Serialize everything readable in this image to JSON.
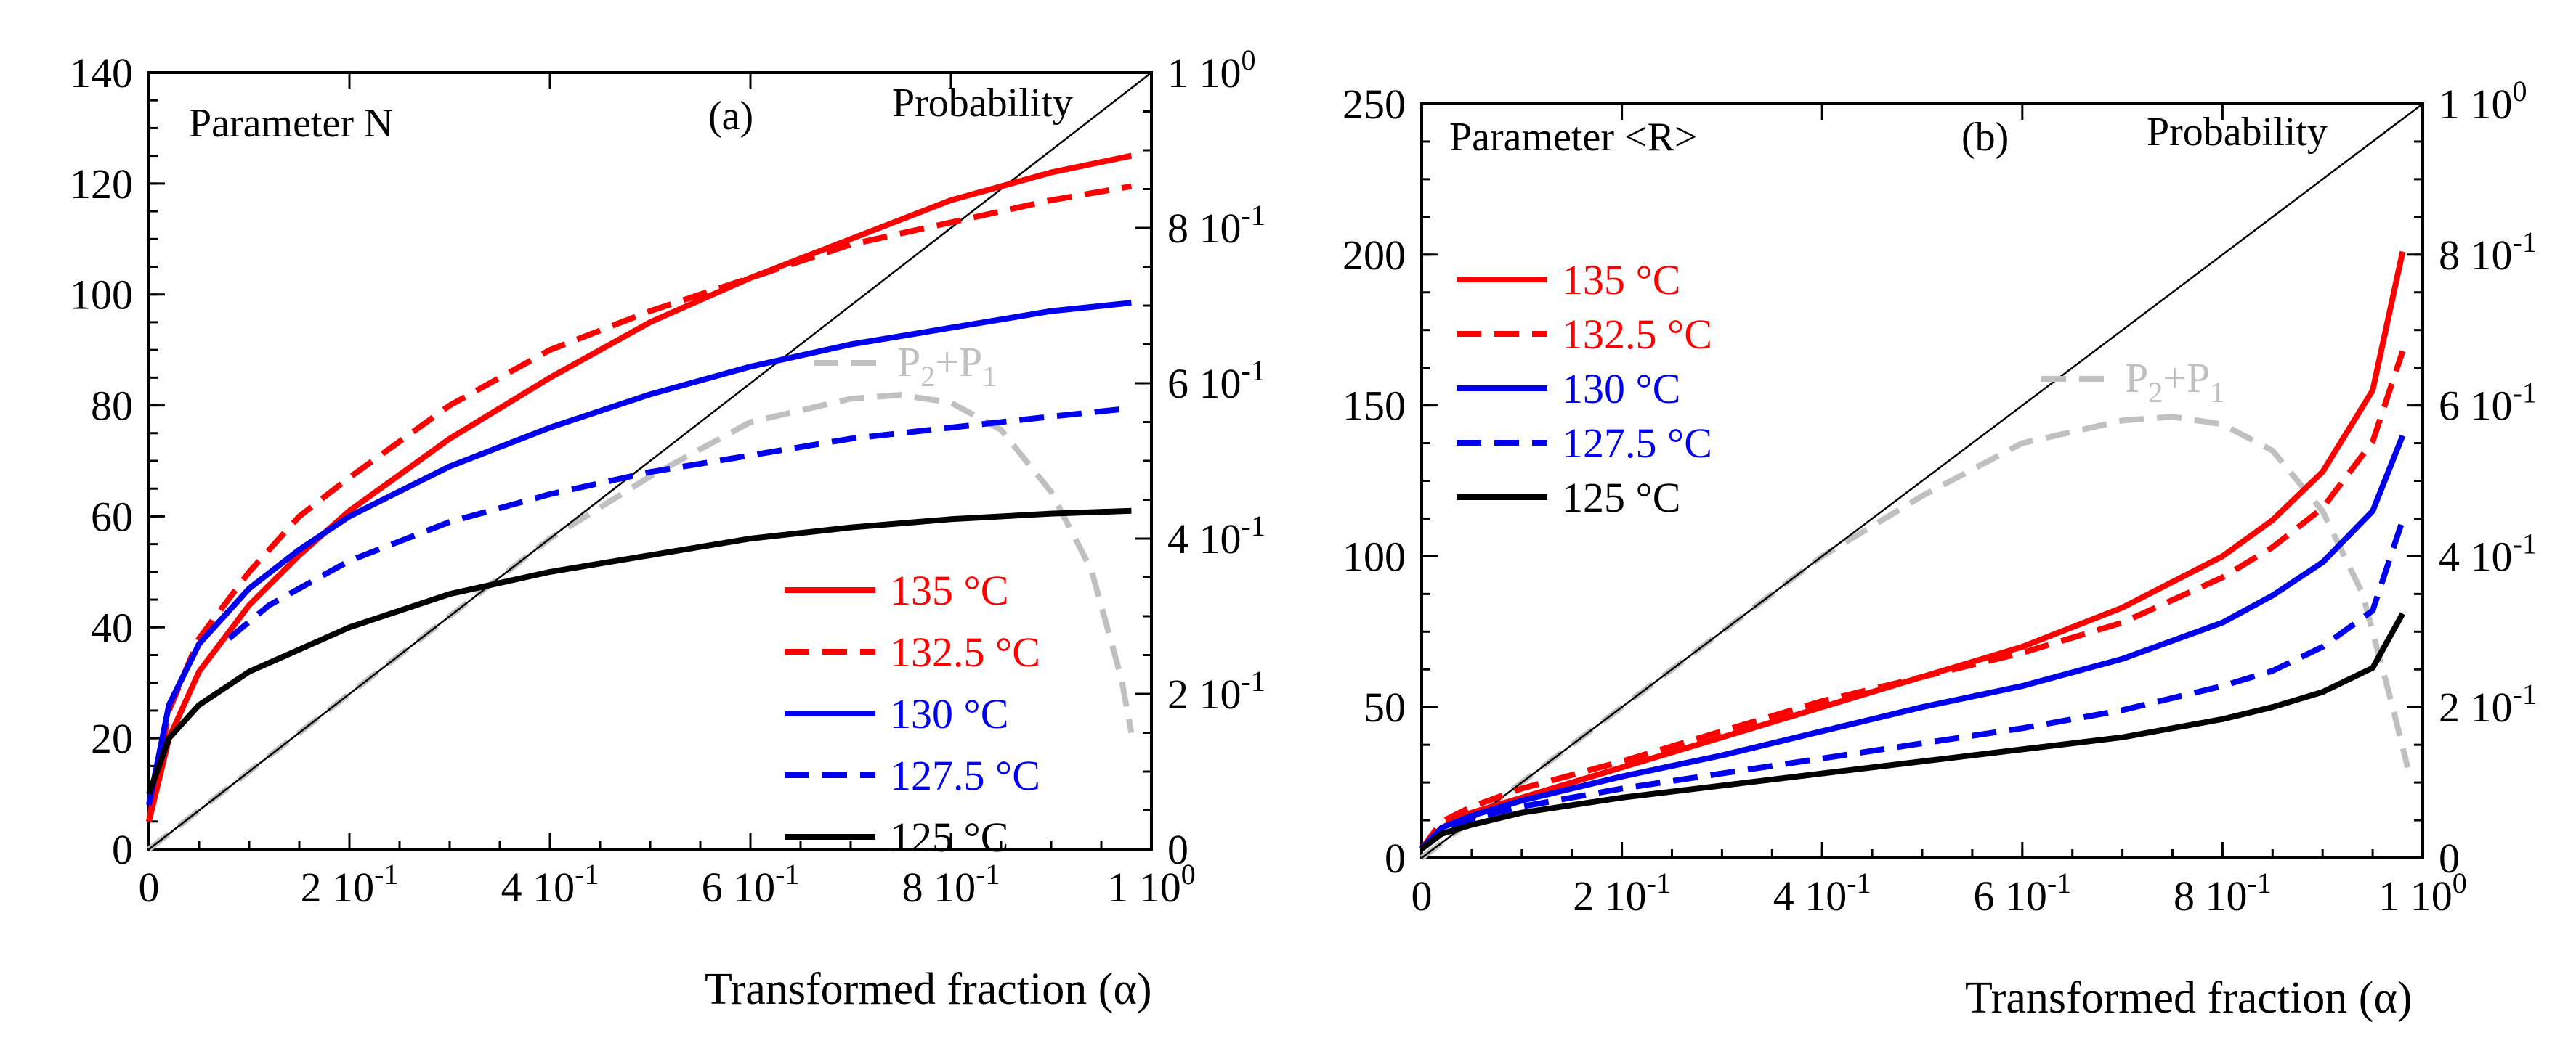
{
  "chart_data": [
    {
      "id": "a",
      "type": "line",
      "panel_label": "(a)",
      "title": "Parameter N",
      "right_title": "Probability",
      "xlabel": "Transformed fraction (α)",
      "xlim": [
        0,
        1
      ],
      "ylim": [
        0,
        140
      ],
      "y2lim": [
        0,
        1
      ],
      "xticks": [
        {
          "v": 0,
          "label": "0"
        },
        {
          "v": 0.2,
          "label": "2 10",
          "exp": "-1"
        },
        {
          "v": 0.4,
          "label": "4 10",
          "exp": "-1"
        },
        {
          "v": 0.6,
          "label": "6 10",
          "exp": "-1"
        },
        {
          "v": 0.8,
          "label": "8 10",
          "exp": "-1"
        },
        {
          "v": 1.0,
          "label": "1 10",
          "exp": "0"
        }
      ],
      "yticks": [
        {
          "v": 0,
          "label": "0"
        },
        {
          "v": 20,
          "label": "20"
        },
        {
          "v": 40,
          "label": "40"
        },
        {
          "v": 60,
          "label": "60"
        },
        {
          "v": 80,
          "label": "80"
        },
        {
          "v": 100,
          "label": "100"
        },
        {
          "v": 120,
          "label": "120"
        },
        {
          "v": 140,
          "label": "140"
        }
      ],
      "y2ticks": [
        {
          "v": 0,
          "label": "0"
        },
        {
          "v": 0.2,
          "label": "2 10",
          "exp": "-1"
        },
        {
          "v": 0.4,
          "label": "4 10",
          "exp": "-1"
        },
        {
          "v": 0.6,
          "label": "6 10",
          "exp": "-1"
        },
        {
          "v": 0.8,
          "label": "8 10",
          "exp": "-1"
        },
        {
          "v": 1.0,
          "label": "1 10",
          "exp": "0"
        }
      ],
      "legend_position": "bottom-right",
      "series": [
        {
          "name": "135 °C",
          "color": "#ff0000",
          "dash": "solid",
          "axis": "left",
          "x": [
            0,
            0.02,
            0.05,
            0.1,
            0.15,
            0.2,
            0.3,
            0.4,
            0.5,
            0.6,
            0.7,
            0.8,
            0.9,
            0.98
          ],
          "y": [
            5,
            20,
            32,
            44,
            53,
            61,
            74,
            85,
            95,
            103,
            110,
            117,
            122,
            125
          ]
        },
        {
          "name": "132.5 °C",
          "color": "#ff0000",
          "dash": "dashed",
          "axis": "left",
          "x": [
            0,
            0.02,
            0.05,
            0.1,
            0.15,
            0.2,
            0.3,
            0.4,
            0.5,
            0.6,
            0.7,
            0.8,
            0.9,
            0.98
          ],
          "y": [
            5,
            25,
            38,
            50,
            60,
            67,
            80,
            90,
            97,
            103,
            109,
            113,
            117,
            119.5
          ]
        },
        {
          "name": "130 °C",
          "color": "#0000ee",
          "dash": "solid",
          "axis": "left",
          "x": [
            0,
            0.02,
            0.05,
            0.1,
            0.15,
            0.2,
            0.3,
            0.4,
            0.5,
            0.6,
            0.7,
            0.8,
            0.9,
            0.98
          ],
          "y": [
            8,
            26,
            37,
            47,
            54,
            60,
            69,
            76,
            82,
            87,
            91,
            94,
            97,
            98.5
          ]
        },
        {
          "name": "127.5 °C",
          "color": "#0000ee",
          "dash": "dashed",
          "axis": "left",
          "x": [
            0.08,
            0.12,
            0.15,
            0.2,
            0.3,
            0.4,
            0.5,
            0.6,
            0.7,
            0.8,
            0.9,
            0.98
          ],
          "y": [
            38,
            44,
            47,
            52,
            59,
            64,
            68,
            71,
            74,
            76,
            78,
            79.5
          ]
        },
        {
          "name": "125 °C",
          "color": "#000000",
          "dash": "solid",
          "axis": "left",
          "x": [
            0,
            0.02,
            0.05,
            0.1,
            0.15,
            0.2,
            0.3,
            0.4,
            0.5,
            0.6,
            0.7,
            0.8,
            0.9,
            0.98
          ],
          "y": [
            10,
            20,
            26,
            32,
            36,
            40,
            46,
            50,
            53,
            56,
            58,
            59.5,
            60.5,
            61
          ]
        },
        {
          "name": "P2+P1",
          "label_main": "P",
          "label_sub1": "2",
          "label_mid": "+P",
          "label_sub2": "1",
          "color": "#c0c0c0",
          "dash": "dashed",
          "axis": "right",
          "x": [
            0,
            0.05,
            0.1,
            0.2,
            0.3,
            0.4,
            0.5,
            0.6,
            0.7,
            0.75,
            0.8,
            0.85,
            0.9,
            0.94,
            0.97,
            0.98
          ],
          "y": [
            0,
            0.05,
            0.1,
            0.2,
            0.3,
            0.4,
            0.48,
            0.55,
            0.58,
            0.585,
            0.575,
            0.54,
            0.46,
            0.36,
            0.22,
            0.15
          ]
        },
        {
          "name": "diagonal",
          "color": "#000000",
          "dash": "thin",
          "axis": "right",
          "x": [
            0,
            1
          ],
          "y": [
            0,
            1
          ]
        }
      ]
    },
    {
      "id": "b",
      "type": "line",
      "panel_label": "(b)",
      "title": "Parameter <R>",
      "right_title": "Probability",
      "xlabel": "Transformed fraction (α)",
      "xlim": [
        0,
        1
      ],
      "ylim": [
        0,
        250
      ],
      "y2lim": [
        0,
        1
      ],
      "xticks": [
        {
          "v": 0,
          "label": "0"
        },
        {
          "v": 0.2,
          "label": "2 10",
          "exp": "-1"
        },
        {
          "v": 0.4,
          "label": "4 10",
          "exp": "-1"
        },
        {
          "v": 0.6,
          "label": "6 10",
          "exp": "-1"
        },
        {
          "v": 0.8,
          "label": "8 10",
          "exp": "-1"
        },
        {
          "v": 1.0,
          "label": "1 10",
          "exp": "0"
        }
      ],
      "yticks": [
        {
          "v": 0,
          "label": "0"
        },
        {
          "v": 50,
          "label": "50"
        },
        {
          "v": 100,
          "label": "100"
        },
        {
          "v": 150,
          "label": "150"
        },
        {
          "v": 200,
          "label": "200"
        },
        {
          "v": 250,
          "label": "250"
        }
      ],
      "y2ticks": [
        {
          "v": 0,
          "label": "0"
        },
        {
          "v": 0.2,
          "label": "2 10",
          "exp": "-1"
        },
        {
          "v": 0.4,
          "label": "4 10",
          "exp": "-1"
        },
        {
          "v": 0.6,
          "label": "6 10",
          "exp": "-1"
        },
        {
          "v": 0.8,
          "label": "8 10",
          "exp": "-1"
        },
        {
          "v": 1.0,
          "label": "1 10",
          "exp": "0"
        }
      ],
      "legend_position": "top-left",
      "series": [
        {
          "name": "135 °C",
          "color": "#ff0000",
          "dash": "solid",
          "axis": "left",
          "x": [
            0,
            0.02,
            0.05,
            0.1,
            0.2,
            0.3,
            0.4,
            0.5,
            0.6,
            0.7,
            0.8,
            0.85,
            0.9,
            0.95,
            0.98
          ],
          "y": [
            3,
            10,
            15,
            20,
            30,
            40,
            50,
            60,
            70,
            83,
            100,
            112,
            128,
            155,
            201
          ]
        },
        {
          "name": "132.5 °C",
          "color": "#ff0000",
          "dash": "dashed",
          "axis": "left",
          "x": [
            0,
            0.02,
            0.05,
            0.1,
            0.2,
            0.3,
            0.4,
            0.5,
            0.6,
            0.7,
            0.8,
            0.85,
            0.9,
            0.95,
            0.98
          ],
          "y": [
            3,
            12,
            17,
            23,
            32,
            42,
            52,
            60,
            68,
            78,
            93,
            103,
            116,
            138,
            168
          ]
        },
        {
          "name": "130 °C",
          "color": "#0000ee",
          "dash": "solid",
          "axis": "left",
          "x": [
            0,
            0.02,
            0.05,
            0.1,
            0.2,
            0.3,
            0.4,
            0.5,
            0.6,
            0.7,
            0.8,
            0.85,
            0.9,
            0.95,
            0.98
          ],
          "y": [
            3,
            10,
            14,
            19,
            27,
            34,
            42,
            50,
            57,
            66,
            78,
            87,
            98,
            115,
            140
          ]
        },
        {
          "name": "127.5 °C",
          "color": "#0000ee",
          "dash": "dashed",
          "axis": "left",
          "x": [
            0,
            0.02,
            0.05,
            0.1,
            0.2,
            0.3,
            0.4,
            0.5,
            0.6,
            0.7,
            0.8,
            0.85,
            0.9,
            0.95,
            0.98
          ],
          "y": [
            3,
            9,
            13,
            17,
            23,
            28,
            33,
            38,
            43,
            49,
            57,
            62,
            70,
            82,
            112
          ]
        },
        {
          "name": "125 °C",
          "color": "#000000",
          "dash": "solid",
          "axis": "left",
          "x": [
            0,
            0.02,
            0.05,
            0.1,
            0.2,
            0.3,
            0.4,
            0.5,
            0.6,
            0.7,
            0.8,
            0.85,
            0.9,
            0.95,
            0.98
          ],
          "y": [
            3,
            8,
            11,
            15,
            20,
            24,
            28,
            32,
            36,
            40,
            46,
            50,
            55,
            63,
            81
          ]
        },
        {
          "name": "P2+P1",
          "label_main": "P",
          "label_sub1": "2",
          "label_mid": "+P",
          "label_sub2": "1",
          "color": "#c0c0c0",
          "dash": "dashed",
          "axis": "right",
          "x": [
            0,
            0.05,
            0.1,
            0.2,
            0.3,
            0.4,
            0.5,
            0.6,
            0.7,
            0.75,
            0.8,
            0.85,
            0.9,
            0.94,
            0.97,
            0.985
          ],
          "y": [
            0,
            0.05,
            0.1,
            0.2,
            0.3,
            0.4,
            0.48,
            0.55,
            0.58,
            0.585,
            0.575,
            0.54,
            0.46,
            0.35,
            0.2,
            0.12
          ]
        },
        {
          "name": "diagonal",
          "color": "#000000",
          "dash": "thin",
          "axis": "right",
          "x": [
            0,
            1
          ],
          "y": [
            0,
            1
          ]
        }
      ]
    }
  ]
}
